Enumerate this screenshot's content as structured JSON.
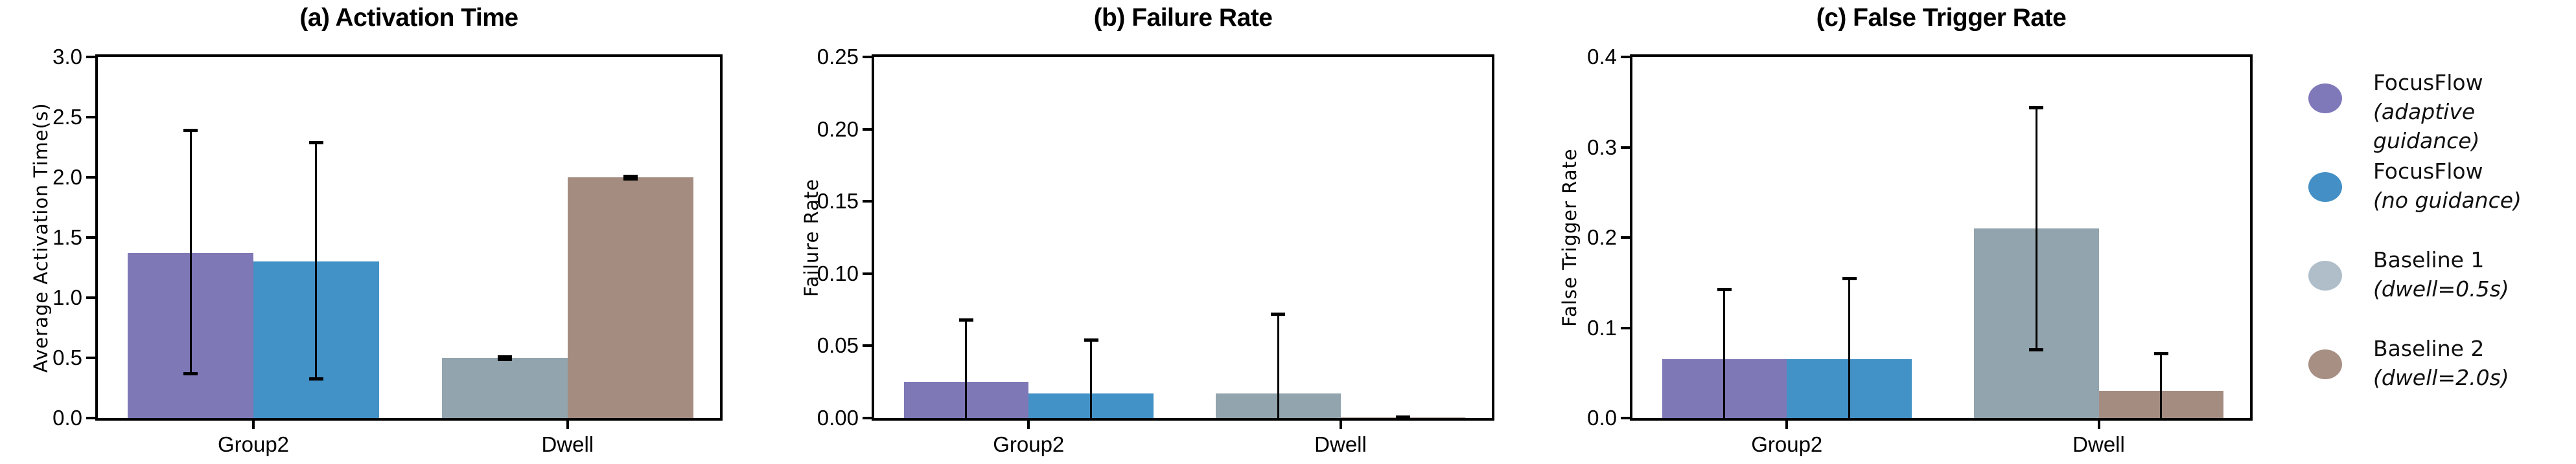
{
  "figure": {
    "background": "#ffffff",
    "axis_color": "#000000",
    "error_bar_color": "#000000"
  },
  "chart_data": [
    {
      "type": "bar",
      "title": "(a) Activation Time",
      "ylabel": "Average Activation Time(s)",
      "ylim": [
        0,
        3.0
      ],
      "ytick_labels": [
        "0.0",
        "0.5",
        "1.0",
        "1.5",
        "2.0",
        "2.5",
        "3.0"
      ],
      "categories": [
        "Group2",
        "Dwell"
      ],
      "grid": false,
      "legend_position": "outside-right",
      "series": [
        {
          "name": "FocusFlow (adaptive guidance)",
          "category": "Group2",
          "color": "#7E78B7",
          "value": 1.37,
          "err_lo": 0.37,
          "err_hi": 2.39
        },
        {
          "name": "FocusFlow (no guidance)",
          "category": "Group2",
          "color": "#4292C7",
          "value": 1.3,
          "err_lo": 0.33,
          "err_hi": 2.29
        },
        {
          "name": "Baseline 1 (dwell=0.5s)",
          "category": "Dwell",
          "color": "#92A4AD",
          "value": 0.5,
          "err_lo": 0.49,
          "err_hi": 0.51
        },
        {
          "name": "Baseline 2 (dwell=2.0s)",
          "category": "Dwell",
          "color": "#A58C81",
          "value": 2.0,
          "err_lo": 1.99,
          "err_hi": 2.01
        }
      ]
    },
    {
      "type": "bar",
      "title": "(b) Failure Rate",
      "ylabel": "Failure Rate",
      "ylim": [
        0,
        0.25
      ],
      "ytick_labels": [
        "0.00",
        "0.05",
        "0.10",
        "0.15",
        "0.20",
        "0.25"
      ],
      "categories": [
        "Group2",
        "Dwell"
      ],
      "grid": false,
      "series": [
        {
          "name": "FocusFlow (adaptive guidance)",
          "category": "Group2",
          "color": "#7E78B7",
          "value": 0.025,
          "err_lo": 0,
          "err_hi": 0.068
        },
        {
          "name": "FocusFlow (no guidance)",
          "category": "Group2",
          "color": "#4292C7",
          "value": 0.017,
          "err_lo": 0,
          "err_hi": 0.054
        },
        {
          "name": "Baseline 1 (dwell=0.5s)",
          "category": "Dwell",
          "color": "#92A4AD",
          "value": 0.017,
          "err_lo": 0,
          "err_hi": 0.072
        },
        {
          "name": "Baseline 2 (dwell=2.0s)",
          "category": "Dwell",
          "color": "#A58C81",
          "value": 0.0005,
          "err_lo": 0,
          "err_hi": 0.001
        }
      ]
    },
    {
      "type": "bar",
      "title": "(c) False Trigger Rate",
      "ylabel": "False Trigger Rate",
      "ylim": [
        0,
        0.4
      ],
      "ytick_labels": [
        "0.0",
        "0.1",
        "0.2",
        "0.3",
        "0.4"
      ],
      "categories": [
        "Group2",
        "Dwell"
      ],
      "grid": false,
      "series": [
        {
          "name": "FocusFlow (adaptive guidance)",
          "category": "Group2",
          "color": "#7E78B7",
          "value": 0.065,
          "err_lo": 0,
          "err_hi": 0.143
        },
        {
          "name": "FocusFlow (no guidance)",
          "category": "Group2",
          "color": "#4292C7",
          "value": 0.065,
          "err_lo": 0,
          "err_hi": 0.155
        },
        {
          "name": "Baseline 1 (dwell=0.5s)",
          "category": "Dwell",
          "color": "#92A4AD",
          "value": 0.21,
          "err_lo": 0.076,
          "err_hi": 0.344
        },
        {
          "name": "Baseline 2 (dwell=2.0s)",
          "category": "Dwell",
          "color": "#A58C81",
          "value": 0.03,
          "err_lo": 0,
          "err_hi": 0.072
        }
      ]
    }
  ],
  "legend": {
    "entries": [
      {
        "label": "FocusFlow",
        "qualifier": "(adaptive guidance)",
        "color": "#7F79BA"
      },
      {
        "label": "FocusFlow",
        "qualifier": "(no guidance)",
        "color": "#4490C6"
      },
      {
        "label": "Baseline 1",
        "qualifier": "(dwell=0.5s)",
        "color": "#AFBEC9"
      },
      {
        "label": "Baseline 2",
        "qualifier": "(dwell=2.0s)",
        "color": "#A78F84"
      }
    ]
  }
}
